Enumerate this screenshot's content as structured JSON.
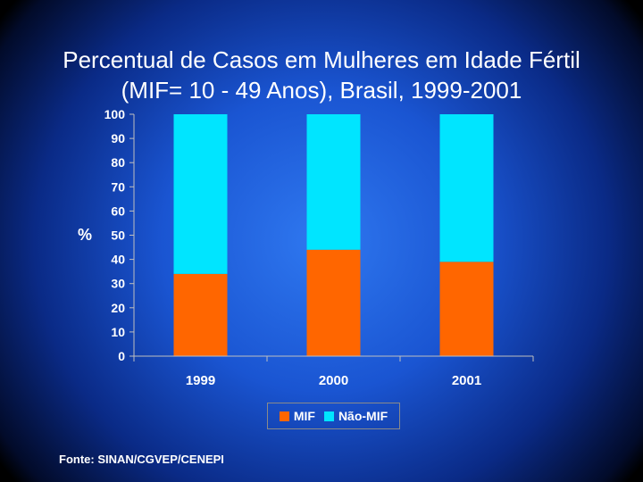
{
  "title": {
    "line1": "Percentual de Casos em Mulheres em Idade Fértil",
    "line2": "(MIF= 10 - 49 Anos), Brasil, 1999-2001"
  },
  "source": "Fonte: SINAN/CGVEP/CENEPI",
  "chart_data": {
    "type": "bar",
    "stacked": true,
    "title": "Percentual de Casos em Mulheres em Idade Fértil (MIF= 10 - 49 Anos), Brasil, 1999-2001",
    "xlabel": "",
    "ylabel": "%",
    "ylim": [
      0,
      100
    ],
    "yticks": [
      0,
      10,
      20,
      30,
      40,
      50,
      60,
      70,
      80,
      90,
      100
    ],
    "categories": [
      "1999",
      "2000",
      "2001"
    ],
    "series": [
      {
        "name": "MIF",
        "color": "#ff6600",
        "values": [
          34,
          44,
          39
        ]
      },
      {
        "name": "Não-MIF",
        "color": "#00e5ff",
        "values": [
          66,
          56,
          61
        ]
      }
    ],
    "legend_position": "bottom",
    "grid": false
  }
}
